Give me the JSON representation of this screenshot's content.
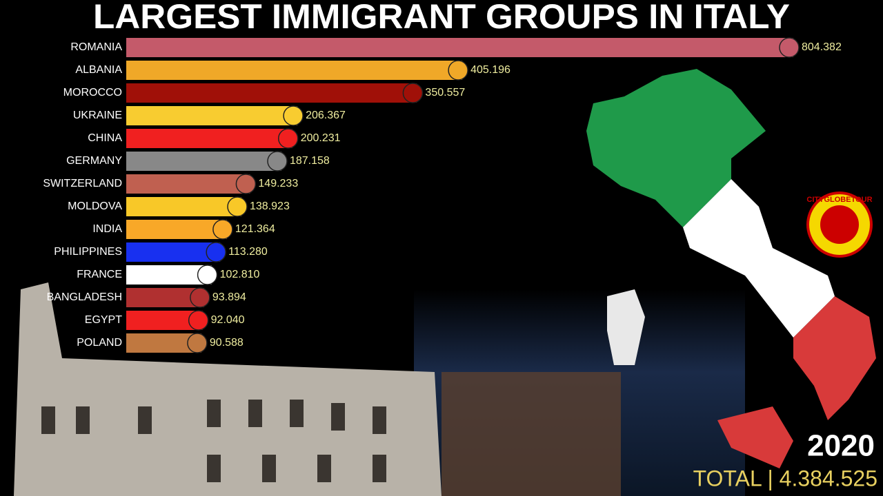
{
  "chart_data": {
    "type": "bar",
    "orientation": "horizontal",
    "title": "LARGEST IMMIGRANT GROUPS IN ITALY",
    "categories": [
      "ROMANIA",
      "ALBANIA",
      "MOROCCO",
      "UKRAINE",
      "CHINA",
      "GERMANY",
      "SWITZERLAND",
      "MOLDOVA",
      "INDIA",
      "PHILIPPINES",
      "FRANCE",
      "BANGLADESH",
      "EGYPT",
      "POLAND"
    ],
    "values": [
      804382,
      405196,
      350557,
      206367,
      200231,
      187158,
      149233,
      138923,
      121364,
      113280,
      102810,
      93894,
      92040,
      90588
    ],
    "value_labels": [
      "804.382",
      "405.196",
      "350.557",
      "206.367",
      "200.231",
      "187.158",
      "149.233",
      "138.923",
      "121.364",
      "113.280",
      "102.810",
      "93.894",
      "92.040",
      "90.588"
    ],
    "colors": [
      "#c45a6a",
      "#f0a828",
      "#a01008",
      "#f8cc30",
      "#f02020",
      "#888888",
      "#c06050",
      "#f8c828",
      "#f8a828",
      "#1830f0",
      "#ffffff",
      "#b03030",
      "#f02020",
      "#c07840"
    ],
    "year": "2020",
    "total": {
      "value": 4384525,
      "label": "TOTAL | 4.384.525"
    },
    "logo": "CITYGLOBETOUR"
  }
}
